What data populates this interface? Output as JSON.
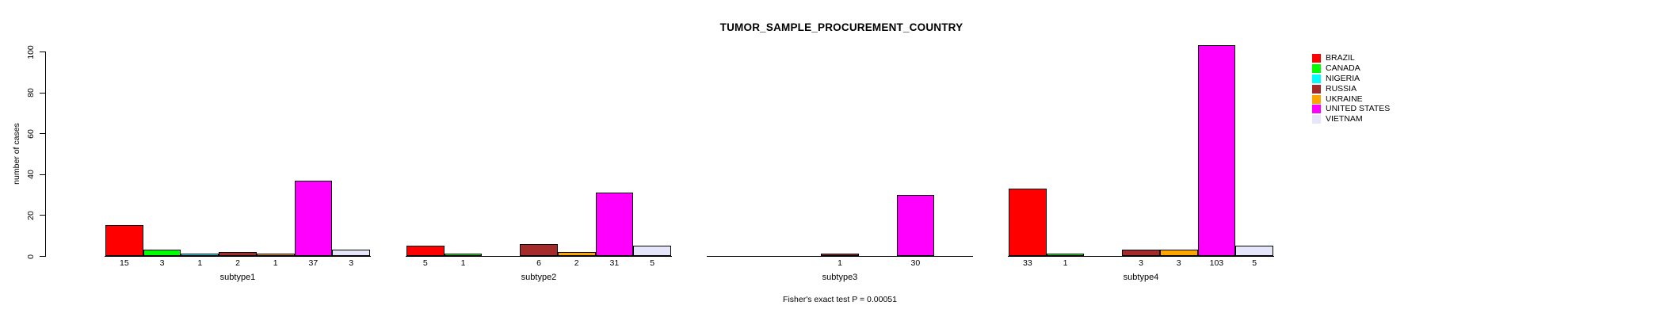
{
  "title": "TUMOR_SAMPLE_PROCUREMENT_COUNTRY",
  "footer": "Fisher's exact test P = 0.00051",
  "y_axis": {
    "label": "number of cases",
    "ticks": [
      0,
      20,
      40,
      60,
      80,
      100
    ]
  },
  "chart_data": {
    "type": "bar",
    "title": "TUMOR_SAMPLE_PROCUREMENT_COUNTRY",
    "xlabel": "",
    "ylabel": "number of cases",
    "ylim": [
      0,
      100
    ],
    "yticks": [
      0,
      20,
      40,
      60,
      80,
      100
    ],
    "grid": false,
    "legend_position": "right",
    "annotation": "Fisher's exact test P = 0.00051",
    "categories": [
      "subtype1",
      "subtype2",
      "subtype3",
      "subtype4"
    ],
    "series": [
      {
        "name": "BRAZIL",
        "color": "#FF0000",
        "values": [
          15,
          5,
          0,
          33
        ]
      },
      {
        "name": "CANADA",
        "color": "#00FF00",
        "values": [
          3,
          1,
          0,
          1
        ]
      },
      {
        "name": "NIGERIA",
        "color": "#00FFFF",
        "values": [
          1,
          0,
          0,
          0
        ]
      },
      {
        "name": "RUSSIA",
        "color": "#A52A2A",
        "values": [
          2,
          6,
          1,
          3
        ]
      },
      {
        "name": "UKRAINE",
        "color": "#FFA500",
        "values": [
          1,
          2,
          0,
          3
        ]
      },
      {
        "name": "UNITED STATES",
        "color": "#FF00FF",
        "values": [
          37,
          31,
          30,
          103
        ]
      },
      {
        "name": "VIETNAM",
        "color": "#E6E6FA",
        "values": [
          3,
          5,
          0,
          5
        ]
      }
    ]
  }
}
